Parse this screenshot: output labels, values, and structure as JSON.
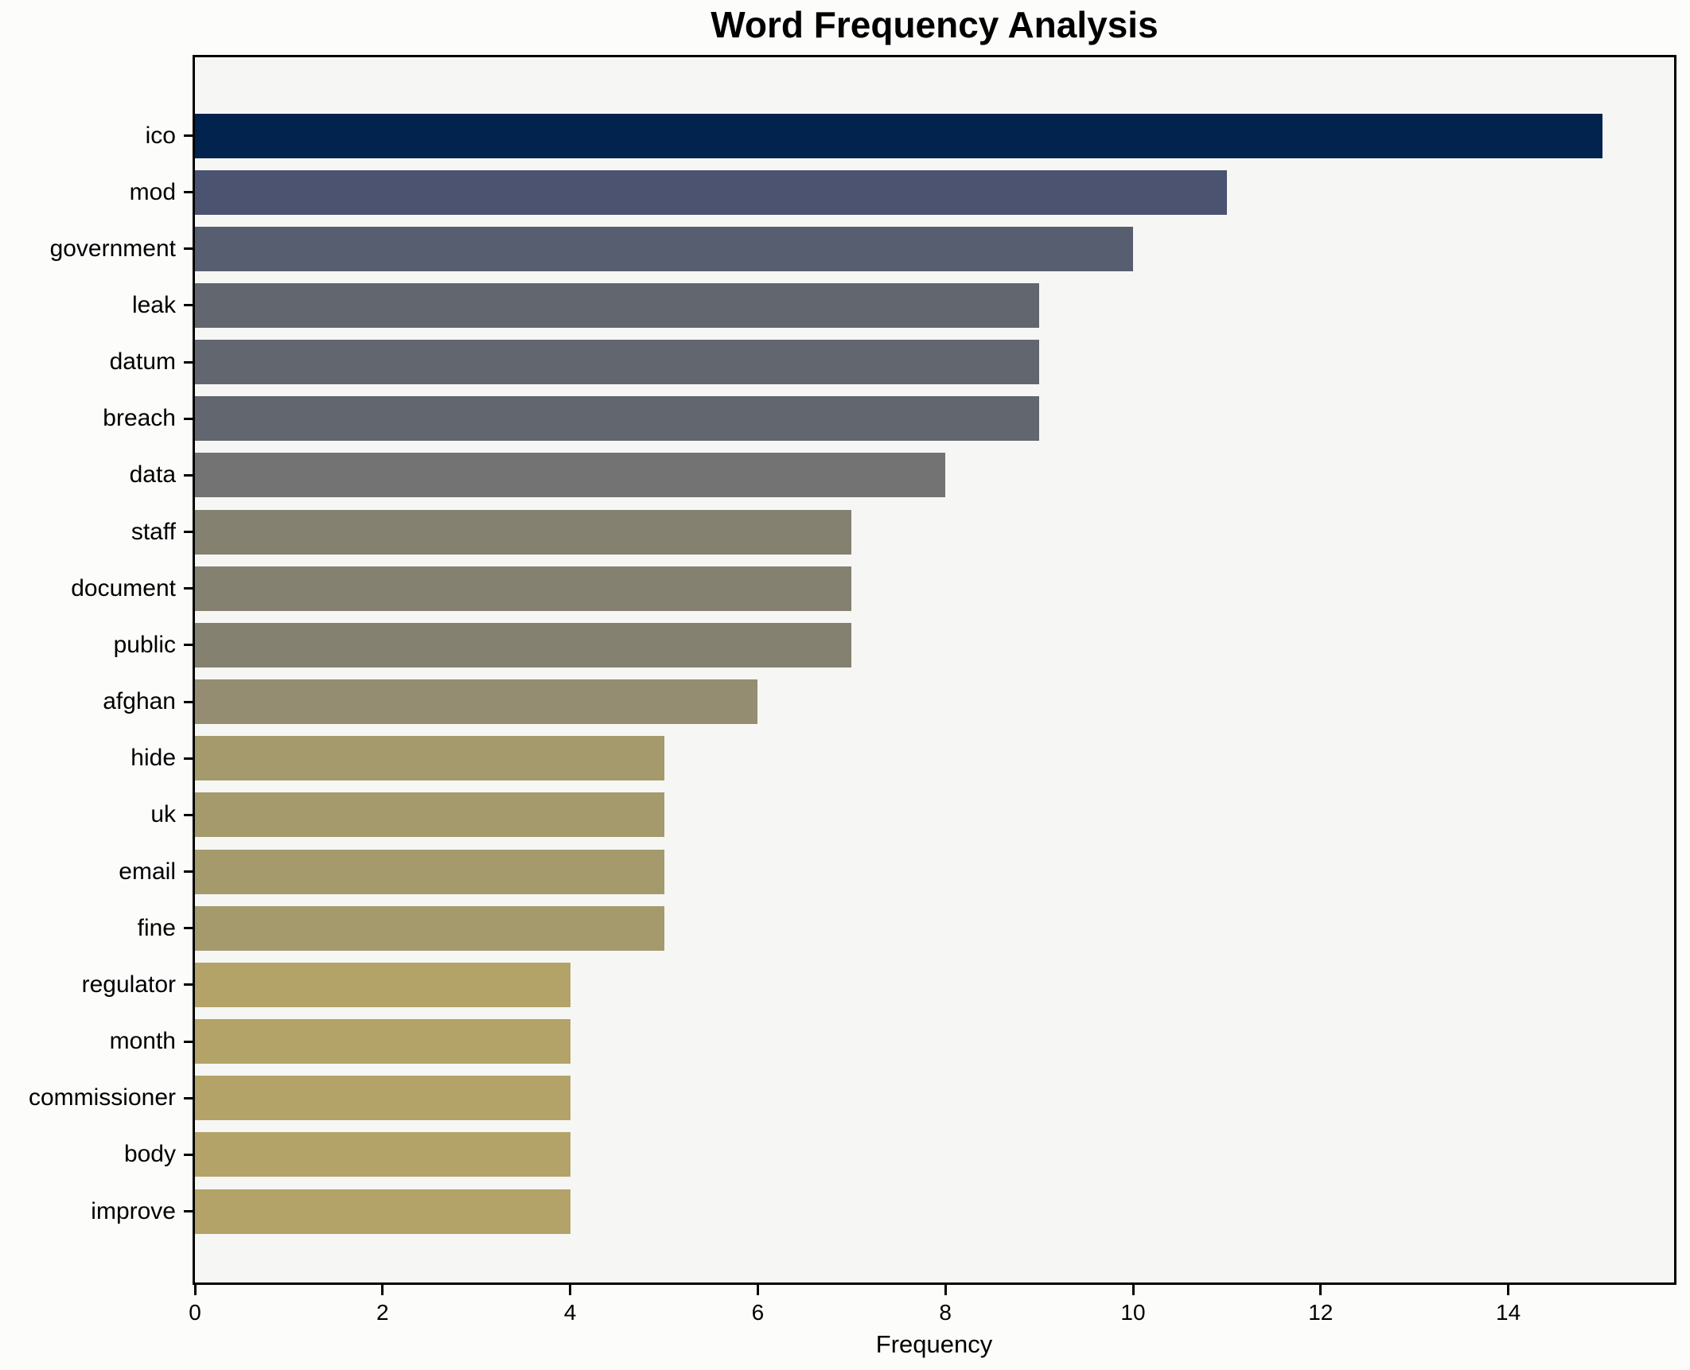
{
  "chart_data": {
    "type": "bar",
    "orientation": "horizontal",
    "title": "Word Frequency Analysis",
    "xlabel": "Frequency",
    "ylabel": "",
    "grid": false,
    "legend": false,
    "xlim": [
      0,
      15.75
    ],
    "xticks": [
      0,
      2,
      4,
      6,
      8,
      10,
      12,
      14
    ],
    "categories": [
      "ico",
      "mod",
      "government",
      "leak",
      "datum",
      "breach",
      "data",
      "staff",
      "document",
      "public",
      "afghan",
      "hide",
      "uk",
      "email",
      "fine",
      "regulator",
      "month",
      "commissioner",
      "body",
      "improve"
    ],
    "values": [
      15,
      11,
      10,
      9,
      9,
      9,
      8,
      7,
      7,
      7,
      6,
      5,
      5,
      5,
      5,
      4,
      4,
      4,
      4,
      4
    ],
    "bar_colors": [
      "#02234e",
      "#4b5370",
      "#575e70",
      "#62666e",
      "#62666e",
      "#62666e",
      "#737373",
      "#848170",
      "#848170",
      "#848170",
      "#948d72",
      "#a49a6c",
      "#a49a6c",
      "#a49a6c",
      "#a49a6c",
      "#b3a368",
      "#b3a368",
      "#b3a368",
      "#b3a368",
      "#b3a368"
    ],
    "colors": {
      "figure_background": "#fcfcfb",
      "plot_background": "#f6f6f4",
      "axis": "#000000",
      "text": "#000000"
    }
  }
}
